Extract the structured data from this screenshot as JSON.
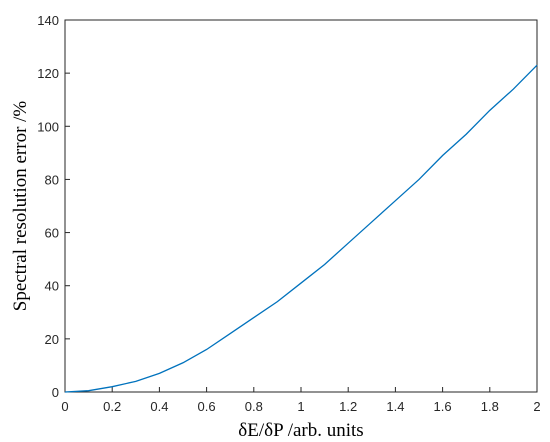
{
  "chart_data": {
    "type": "line",
    "x_label": "δE/δP /arb. units",
    "y_label": "Spectral resolution error /%",
    "x": [
      0,
      0.1,
      0.2,
      0.3,
      0.4,
      0.5,
      0.6,
      0.7,
      0.8,
      0.9,
      1.0,
      1.1,
      1.2,
      1.3,
      1.4,
      1.5,
      1.6,
      1.7,
      1.8,
      1.9,
      2.0
    ],
    "series": [
      {
        "color": "#0072bd",
        "values": [
          0,
          0.5,
          2,
          4,
          7,
          11,
          16,
          22,
          28,
          34,
          41,
          48,
          56,
          64,
          72,
          80,
          89,
          97,
          106,
          114,
          123
        ]
      }
    ],
    "xlim": [
      0,
      2
    ],
    "xticks": [
      0,
      0.2,
      0.4,
      0.6,
      0.8,
      1,
      1.2,
      1.4,
      1.6,
      1.8,
      2
    ],
    "ylim": [
      0,
      140
    ],
    "yticks": [
      0,
      20,
      40,
      60,
      80,
      100,
      120,
      140
    ]
  }
}
